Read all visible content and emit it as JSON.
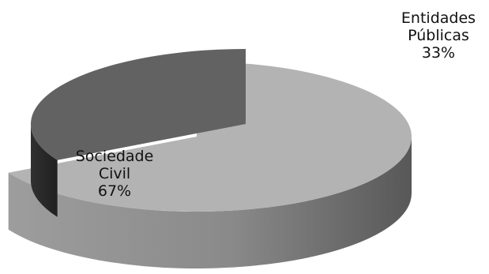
{
  "chart_data": {
    "type": "pie",
    "title": "",
    "slices": [
      {
        "label_lines": [
          "Sociedade",
          "Civil"
        ],
        "value": 67,
        "value_label": "67%",
        "top_color": "#b3b3b3",
        "side_color": "#8f8f8f"
      },
      {
        "label_lines": [
          "Entidades",
          "Públicas"
        ],
        "value": 33,
        "value_label": "33%",
        "top_color": "#626262",
        "side_color": "#2a2a2a"
      }
    ],
    "exploded": true,
    "three_d": true,
    "legend": "none"
  }
}
